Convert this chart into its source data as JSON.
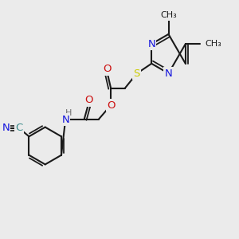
{
  "bg": "#ebebeb",
  "bond_color": "#1a1a1a",
  "bw": 1.5,
  "atom_colors": {
    "N": "#1515dd",
    "O": "#cc1010",
    "S": "#cccc00",
    "C_cn": "#3a8a8a",
    "H": "#707070",
    "default": "#1a1a1a"
  },
  "fs": 9.5,
  "fs_sm": 8.0,
  "xlim": [
    0,
    10
  ],
  "ylim": [
    0,
    10
  ]
}
